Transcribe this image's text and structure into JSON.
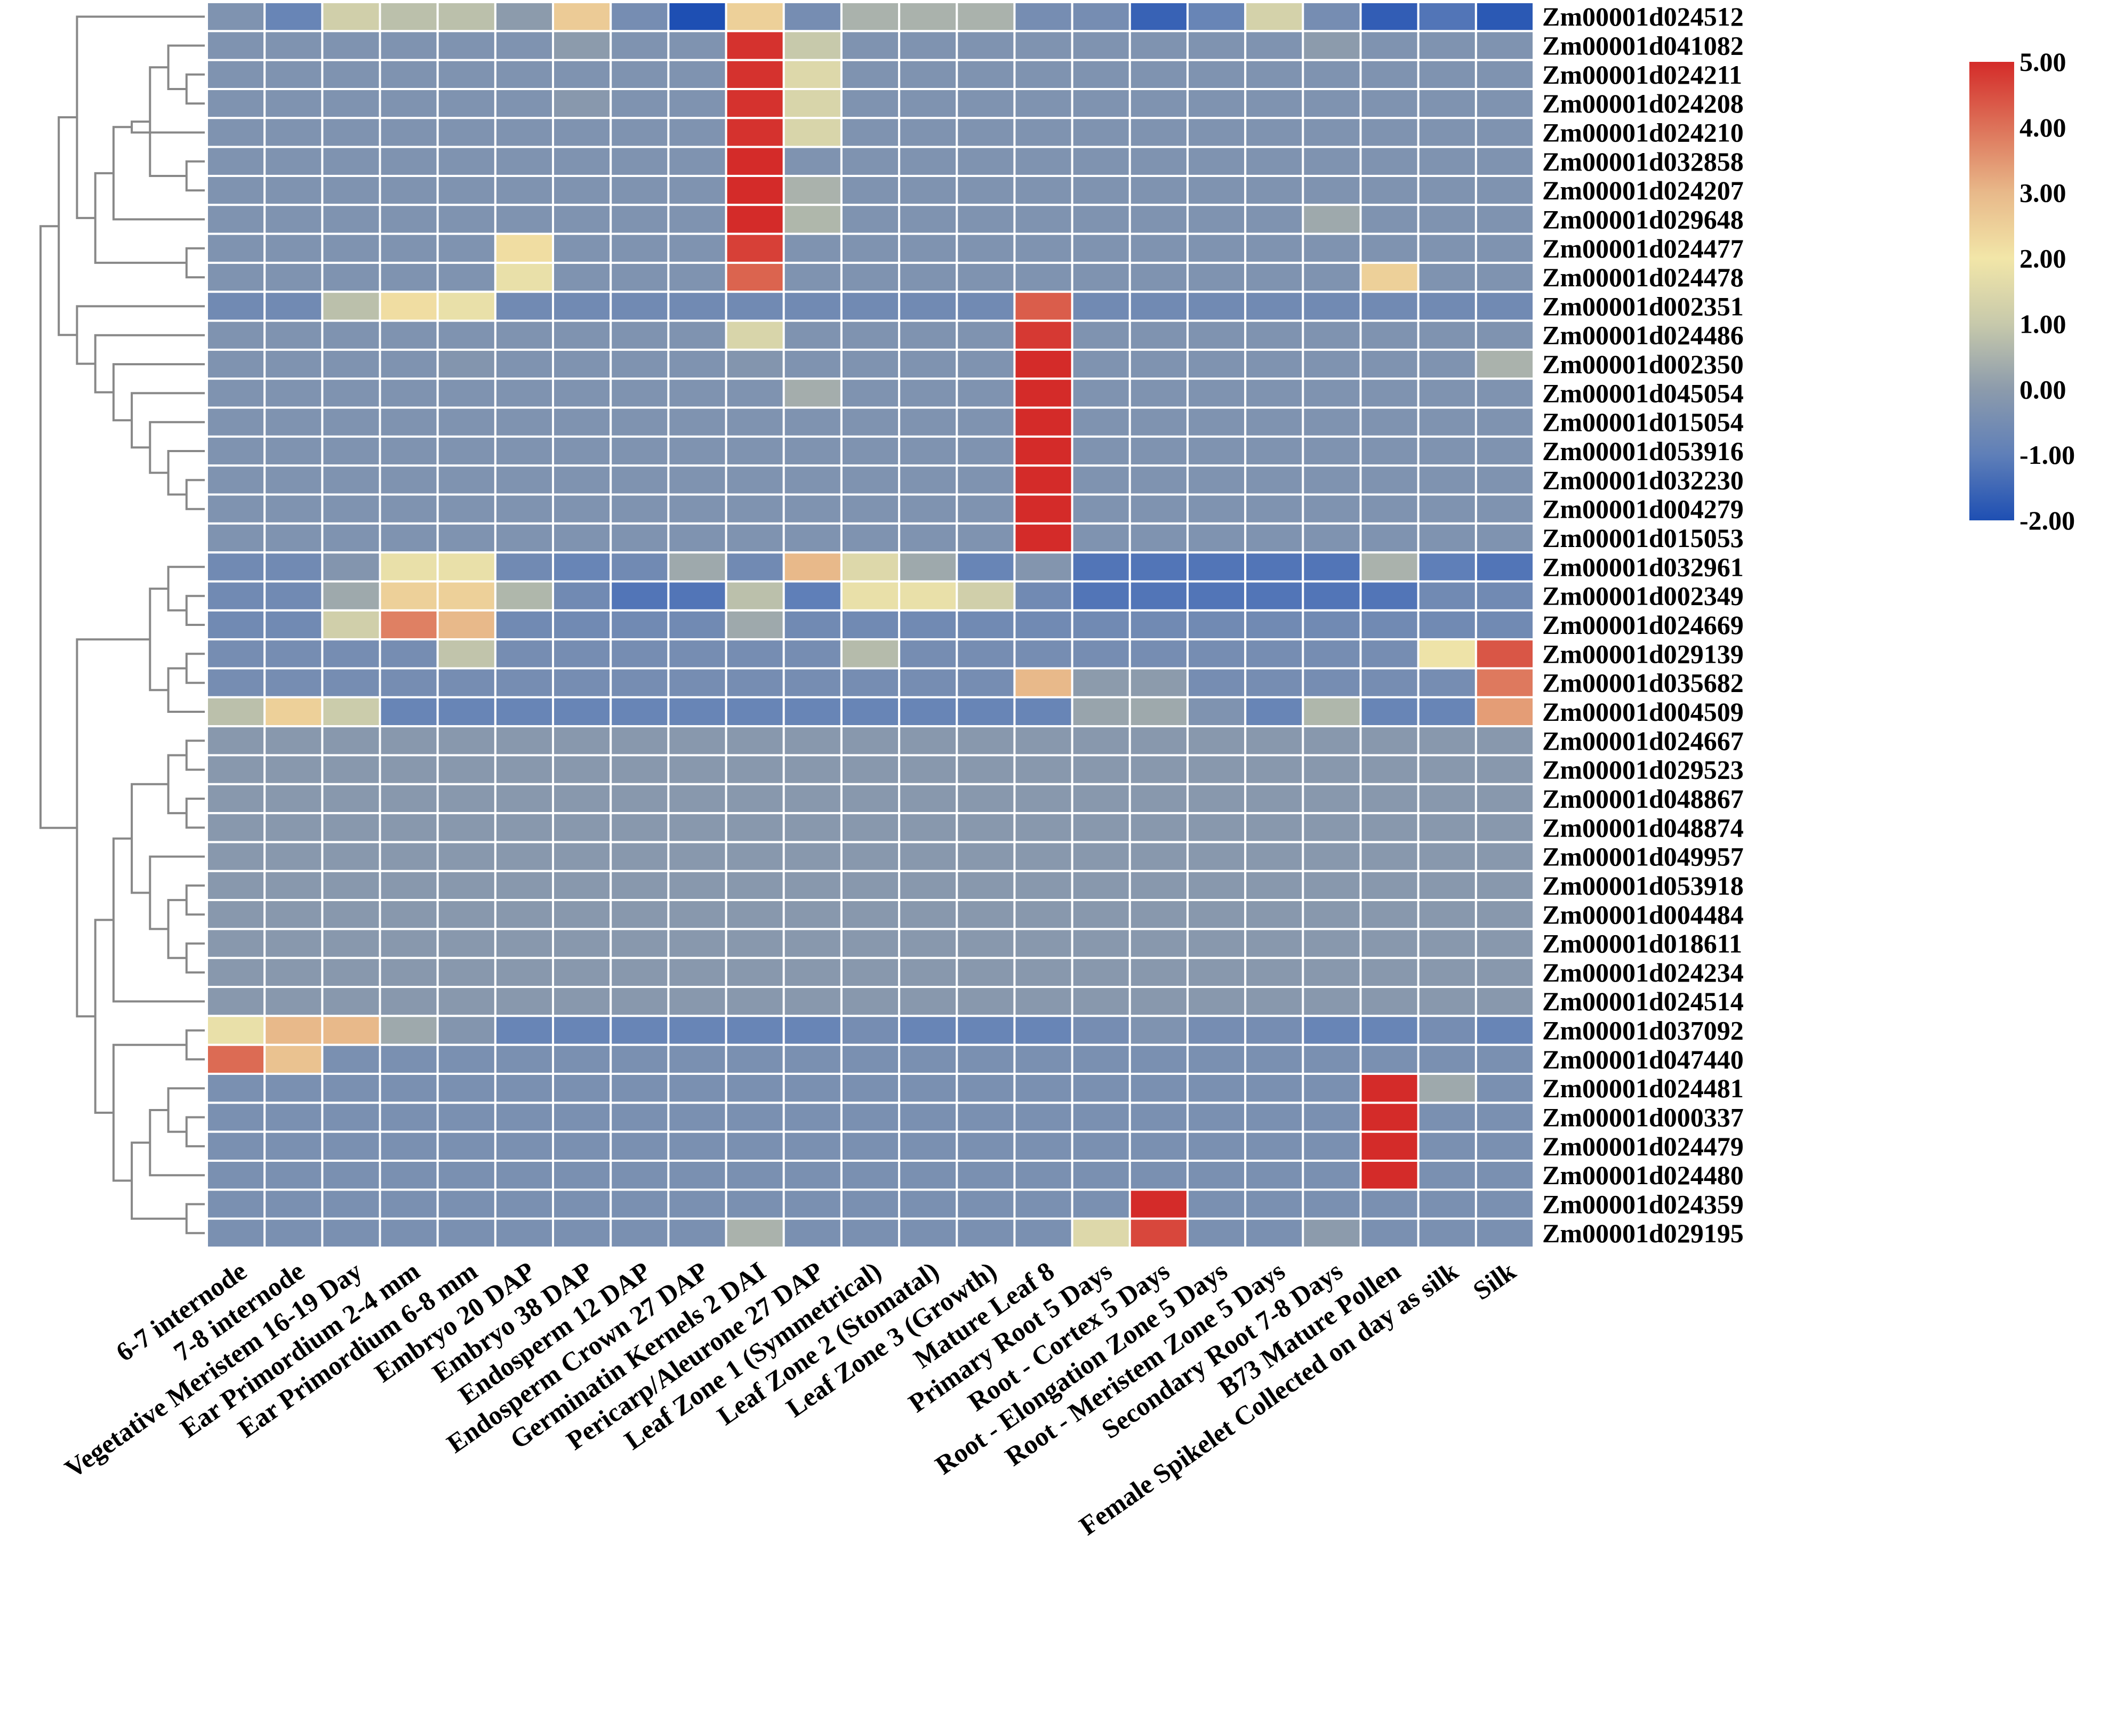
{
  "chart_data": {
    "type": "heatmap",
    "title": "",
    "xlabel": "",
    "ylabel": "",
    "color_scale": {
      "min": -2.0,
      "max": 5.0,
      "stops": [
        {
          "value": -2.0,
          "color": "#1e4fb3"
        },
        {
          "value": -1.0,
          "color": "#5f7fb8"
        },
        {
          "value": 0.0,
          "color": "#8c9bac"
        },
        {
          "value": 1.0,
          "color": "#c7c9ab"
        },
        {
          "value": 2.0,
          "color": "#f2e6a8"
        },
        {
          "value": 3.0,
          "color": "#e8b98a"
        },
        {
          "value": 4.0,
          "color": "#dd7259"
        },
        {
          "value": 5.0,
          "color": "#d42b29"
        }
      ],
      "tick_labels": [
        "5.00",
        "4.00",
        "3.00",
        "2.00",
        "1.00",
        "0.00",
        "-1.00",
        "-2.00"
      ],
      "tick_values": [
        5,
        4,
        3,
        2,
        1,
        0,
        -1,
        -2
      ]
    },
    "columns": [
      "6-7 internode",
      "7-8 internode",
      "Vegetative Meristem 16-19 Day",
      "Ear Primordium 2-4 mm",
      "Ear Primordium 6-8 mm",
      "Embryo 20 DAP",
      "Embryo 38 DAP",
      "Endosperm 12 DAP",
      "Endosperm Crown 27 DAP",
      "Germinatin Kernels 2 DAI",
      "Pericarp/Aleurone 27 DAP",
      "Leaf Zone 1 (Symmetrical)",
      "Leaf Zone 2 (Stomatal)",
      "Leaf Zone 3 (Growth)",
      "Mature Leaf 8",
      "Primary Root 5 Days",
      "Root - Cortex 5 Days",
      "Root - Elongation Zone 5 Days",
      "Root - Meristem Zone 5 Days",
      "Secondary Root 7-8 Days",
      "B73 Mature Pollen",
      "Female Spikelet Collected on day as silk",
      "Silk"
    ],
    "rows": [
      "Zm00001d024512",
      "Zm00001d041082",
      "Zm00001d024211",
      "Zm00001d024208",
      "Zm00001d024210",
      "Zm00001d032858",
      "Zm00001d024207",
      "Zm00001d029648",
      "Zm00001d024477",
      "Zm00001d024478",
      "Zm00001d002351",
      "Zm00001d024486",
      "Zm00001d002350",
      "Zm00001d045054",
      "Zm00001d015054",
      "Zm00001d053916",
      "Zm00001d032230",
      "Zm00001d004279",
      "Zm00001d015053",
      "Zm00001d032961",
      "Zm00001d002349",
      "Zm00001d024669",
      "Zm00001d029139",
      "Zm00001d035682",
      "Zm00001d004509",
      "Zm00001d024667",
      "Zm00001d029523",
      "Zm00001d048867",
      "Zm00001d048874",
      "Zm00001d049957",
      "Zm00001d053918",
      "Zm00001d004484",
      "Zm00001d018611",
      "Zm00001d024234",
      "Zm00001d024514",
      "Zm00001d037092",
      "Zm00001d047440",
      "Zm00001d024481",
      "Zm00001d000337",
      "Zm00001d024479",
      "Zm00001d024480",
      "Zm00001d024359",
      "Zm00001d029195"
    ],
    "values": [
      [
        -0.3,
        -0.8,
        1.2,
        0.8,
        0.8,
        0.0,
        2.6,
        -0.5,
        -2.0,
        2.5,
        -0.5,
        0.5,
        0.5,
        0.5,
        -0.5,
        -0.5,
        -1.6,
        -0.8,
        1.3,
        -0.5,
        -1.7,
        -1.2,
        -1.8
      ],
      [
        -0.3,
        -0.3,
        -0.3,
        -0.3,
        -0.3,
        -0.3,
        0.0,
        -0.3,
        -0.3,
        4.9,
        1.0,
        -0.3,
        -0.3,
        -0.3,
        -0.3,
        -0.3,
        -0.3,
        -0.3,
        -0.3,
        0.0,
        -0.3,
        -0.3,
        -0.3
      ],
      [
        -0.3,
        -0.3,
        -0.3,
        -0.3,
        -0.3,
        -0.3,
        -0.3,
        -0.3,
        -0.3,
        4.9,
        1.5,
        -0.3,
        -0.3,
        -0.3,
        -0.3,
        -0.3,
        -0.3,
        -0.3,
        -0.3,
        -0.3,
        -0.3,
        -0.3,
        -0.3
      ],
      [
        -0.3,
        -0.3,
        -0.3,
        -0.3,
        -0.3,
        -0.3,
        -0.1,
        -0.3,
        -0.3,
        4.9,
        1.4,
        -0.3,
        -0.3,
        -0.3,
        -0.3,
        -0.3,
        -0.3,
        -0.3,
        -0.3,
        -0.3,
        -0.3,
        -0.3,
        -0.3
      ],
      [
        -0.3,
        -0.3,
        -0.3,
        -0.3,
        -0.3,
        -0.3,
        -0.3,
        -0.3,
        -0.3,
        4.9,
        1.4,
        -0.3,
        -0.3,
        -0.3,
        -0.3,
        -0.3,
        -0.3,
        -0.3,
        -0.3,
        -0.3,
        -0.3,
        -0.3,
        -0.3
      ],
      [
        -0.3,
        -0.3,
        -0.3,
        -0.3,
        -0.3,
        -0.3,
        -0.3,
        -0.3,
        -0.3,
        5.0,
        -0.3,
        -0.3,
        -0.3,
        -0.3,
        -0.3,
        -0.3,
        -0.3,
        -0.3,
        -0.3,
        -0.3,
        -0.3,
        -0.3,
        -0.3
      ],
      [
        -0.3,
        -0.3,
        -0.3,
        -0.3,
        -0.3,
        -0.3,
        -0.3,
        -0.3,
        -0.3,
        5.0,
        0.5,
        -0.3,
        -0.3,
        -0.3,
        -0.3,
        -0.3,
        -0.3,
        -0.3,
        -0.3,
        -0.3,
        -0.3,
        -0.3,
        -0.3
      ],
      [
        -0.3,
        -0.3,
        -0.3,
        -0.3,
        -0.3,
        -0.3,
        -0.3,
        -0.3,
        -0.3,
        5.0,
        0.6,
        -0.3,
        -0.3,
        -0.3,
        -0.3,
        -0.3,
        -0.3,
        -0.3,
        -0.3,
        0.3,
        -0.3,
        -0.3,
        -0.3
      ],
      [
        -0.3,
        -0.3,
        -0.3,
        -0.3,
        -0.3,
        2.2,
        -0.3,
        -0.3,
        -0.3,
        4.7,
        -0.3,
        -0.3,
        -0.3,
        -0.3,
        -0.3,
        -0.3,
        -0.3,
        -0.3,
        -0.3,
        -0.3,
        -0.3,
        -0.3,
        -0.3
      ],
      [
        -0.3,
        -0.3,
        -0.3,
        -0.3,
        -0.3,
        1.8,
        -0.3,
        -0.3,
        -0.3,
        4.2,
        -0.3,
        -0.3,
        -0.3,
        -0.3,
        -0.3,
        -0.3,
        -0.3,
        -0.3,
        -0.3,
        -0.3,
        2.5,
        -0.3,
        -0.3
      ],
      [
        -0.6,
        -0.6,
        0.8,
        2.2,
        1.8,
        -0.6,
        -0.6,
        -0.6,
        -0.6,
        -0.6,
        -0.6,
        -0.6,
        -0.6,
        -0.6,
        4.3,
        -0.6,
        -0.6,
        -0.6,
        -0.6,
        -0.6,
        -0.6,
        -0.6,
        -0.6
      ],
      [
        -0.3,
        -0.3,
        -0.3,
        -0.3,
        -0.3,
        -0.3,
        -0.3,
        -0.3,
        -0.3,
        1.4,
        -0.3,
        -0.3,
        -0.3,
        -0.3,
        4.8,
        -0.3,
        -0.3,
        -0.3,
        -0.3,
        -0.3,
        -0.3,
        -0.3,
        -0.3
      ],
      [
        -0.3,
        -0.3,
        -0.3,
        -0.3,
        -0.2,
        -0.3,
        -0.3,
        -0.3,
        -0.3,
        -0.2,
        -0.3,
        -0.3,
        -0.3,
        -0.3,
        5.0,
        -0.3,
        -0.3,
        -0.3,
        -0.3,
        -0.3,
        -0.3,
        -0.3,
        0.5
      ],
      [
        -0.3,
        -0.3,
        -0.3,
        -0.3,
        -0.3,
        -0.3,
        -0.3,
        -0.3,
        -0.3,
        -0.3,
        0.4,
        -0.3,
        -0.3,
        -0.3,
        5.0,
        -0.3,
        -0.3,
        -0.3,
        -0.3,
        -0.3,
        -0.3,
        -0.3,
        -0.3
      ],
      [
        -0.3,
        -0.3,
        -0.3,
        -0.3,
        -0.3,
        -0.3,
        -0.3,
        -0.3,
        -0.3,
        -0.3,
        -0.3,
        -0.3,
        -0.3,
        -0.3,
        5.0,
        -0.3,
        -0.3,
        -0.3,
        -0.3,
        -0.3,
        -0.3,
        -0.3,
        -0.3
      ],
      [
        -0.3,
        -0.3,
        -0.3,
        -0.3,
        -0.3,
        -0.3,
        -0.3,
        -0.3,
        -0.3,
        -0.3,
        -0.3,
        -0.3,
        -0.3,
        -0.3,
        5.0,
        -0.3,
        -0.3,
        -0.3,
        -0.3,
        -0.3,
        -0.3,
        -0.3,
        -0.3
      ],
      [
        -0.3,
        -0.3,
        -0.3,
        -0.3,
        -0.3,
        -0.3,
        -0.3,
        -0.3,
        -0.3,
        -0.3,
        -0.3,
        -0.3,
        -0.3,
        -0.3,
        5.0,
        -0.3,
        -0.3,
        -0.3,
        -0.3,
        -0.3,
        -0.3,
        -0.3,
        -0.3
      ],
      [
        -0.3,
        -0.3,
        -0.3,
        -0.3,
        -0.3,
        -0.3,
        -0.3,
        -0.3,
        -0.3,
        -0.3,
        -0.3,
        -0.3,
        -0.3,
        -0.3,
        5.0,
        -0.3,
        -0.3,
        -0.3,
        -0.3,
        -0.3,
        -0.3,
        -0.3,
        -0.3
      ],
      [
        -0.3,
        -0.3,
        -0.3,
        -0.3,
        -0.3,
        -0.3,
        -0.3,
        -0.3,
        -0.3,
        -0.3,
        -0.3,
        -0.3,
        -0.3,
        -0.3,
        5.0,
        -0.3,
        -0.3,
        -0.3,
        -0.3,
        -0.3,
        -0.3,
        -0.3,
        -0.3
      ],
      [
        -0.6,
        -0.6,
        -0.2,
        1.8,
        1.8,
        -0.6,
        -0.8,
        -0.6,
        0.3,
        -0.6,
        3.0,
        1.5,
        0.3,
        -0.8,
        -0.2,
        -1.2,
        -1.2,
        -1.2,
        -1.2,
        -1.2,
        0.5,
        -1.0,
        -1.2
      ],
      [
        -0.6,
        -0.6,
        0.3,
        2.5,
        2.5,
        0.6,
        -0.6,
        -1.2,
        -1.2,
        0.8,
        -1.0,
        1.8,
        1.8,
        1.2,
        -0.6,
        -1.2,
        -1.2,
        -1.2,
        -1.2,
        -1.2,
        -1.2,
        -0.6,
        -0.6
      ],
      [
        -0.6,
        -0.6,
        1.2,
        3.8,
        3.0,
        -0.6,
        -0.6,
        -0.6,
        -0.6,
        0.3,
        -0.6,
        -0.6,
        -0.6,
        -0.6,
        -0.6,
        -0.6,
        -0.6,
        -0.6,
        -0.6,
        -0.6,
        -0.6,
        -0.6,
        -0.6
      ],
      [
        -0.5,
        -0.5,
        -0.5,
        -0.5,
        0.9,
        -0.5,
        -0.5,
        -0.5,
        -0.5,
        -0.5,
        -0.5,
        0.7,
        -0.5,
        -0.5,
        -0.5,
        -0.5,
        -0.5,
        -0.5,
        -0.5,
        -0.5,
        -0.5,
        1.9,
        4.4
      ],
      [
        -0.5,
        -0.5,
        -0.5,
        -0.5,
        -0.5,
        -0.5,
        -0.5,
        -0.5,
        -0.5,
        -0.5,
        -0.5,
        -0.5,
        -0.5,
        -0.5,
        3.0,
        0.0,
        0.0,
        -0.5,
        -0.5,
        -0.5,
        -0.5,
        -0.5,
        3.9
      ],
      [
        0.8,
        2.5,
        1.1,
        -0.8,
        -0.8,
        -0.8,
        -0.8,
        -0.8,
        -0.8,
        -0.8,
        -0.8,
        -0.8,
        -0.8,
        -0.8,
        -0.8,
        0.2,
        0.3,
        -0.3,
        -0.8,
        0.6,
        -0.8,
        -0.8,
        3.4
      ],
      [
        -0.1,
        -0.1,
        -0.1,
        -0.1,
        -0.1,
        -0.1,
        -0.1,
        -0.1,
        -0.1,
        -0.1,
        -0.1,
        -0.1,
        -0.1,
        -0.1,
        -0.1,
        -0.1,
        -0.1,
        -0.1,
        -0.1,
        -0.1,
        -0.1,
        -0.1,
        -0.1
      ],
      [
        -0.1,
        -0.1,
        -0.1,
        -0.1,
        -0.1,
        -0.1,
        -0.1,
        -0.1,
        -0.1,
        -0.1,
        -0.1,
        -0.1,
        -0.1,
        -0.1,
        -0.1,
        -0.1,
        -0.1,
        -0.1,
        -0.1,
        -0.1,
        -0.1,
        -0.1,
        -0.1
      ],
      [
        -0.1,
        -0.1,
        -0.1,
        -0.1,
        -0.1,
        -0.1,
        -0.1,
        -0.1,
        -0.1,
        -0.1,
        -0.1,
        -0.1,
        -0.1,
        -0.1,
        -0.1,
        -0.1,
        -0.1,
        -0.1,
        -0.1,
        -0.1,
        -0.1,
        -0.1,
        -0.1
      ],
      [
        -0.1,
        -0.1,
        -0.1,
        -0.1,
        -0.1,
        -0.1,
        -0.1,
        -0.1,
        -0.1,
        -0.1,
        -0.1,
        -0.1,
        -0.1,
        -0.1,
        -0.1,
        -0.1,
        -0.1,
        -0.1,
        -0.1,
        -0.1,
        -0.1,
        -0.1,
        -0.1
      ],
      [
        -0.1,
        -0.1,
        -0.1,
        -0.1,
        -0.1,
        -0.1,
        -0.1,
        -0.1,
        -0.1,
        -0.1,
        -0.1,
        -0.1,
        -0.1,
        -0.1,
        -0.1,
        -0.1,
        -0.1,
        -0.1,
        -0.1,
        -0.1,
        -0.1,
        -0.1,
        -0.1
      ],
      [
        -0.1,
        -0.1,
        -0.1,
        -0.1,
        -0.1,
        -0.1,
        -0.1,
        -0.1,
        -0.1,
        -0.1,
        -0.1,
        -0.1,
        -0.1,
        -0.1,
        -0.1,
        -0.1,
        -0.1,
        -0.1,
        -0.1,
        -0.1,
        -0.1,
        -0.1,
        -0.1
      ],
      [
        -0.1,
        -0.1,
        -0.1,
        -0.1,
        -0.1,
        -0.1,
        -0.1,
        -0.1,
        -0.1,
        -0.1,
        -0.1,
        -0.1,
        -0.1,
        -0.1,
        -0.1,
        -0.1,
        -0.1,
        -0.1,
        -0.1,
        -0.1,
        -0.1,
        -0.1,
        -0.1
      ],
      [
        -0.1,
        -0.1,
        -0.1,
        -0.1,
        -0.1,
        -0.1,
        -0.1,
        -0.1,
        -0.1,
        -0.1,
        -0.1,
        -0.1,
        -0.1,
        -0.1,
        -0.1,
        -0.1,
        -0.1,
        -0.1,
        -0.1,
        -0.1,
        -0.1,
        -0.1,
        -0.1
      ],
      [
        -0.1,
        -0.1,
        -0.1,
        -0.1,
        -0.1,
        -0.1,
        -0.1,
        -0.1,
        -0.1,
        -0.1,
        -0.1,
        -0.1,
        -0.1,
        -0.1,
        -0.1,
        -0.1,
        -0.1,
        -0.1,
        -0.1,
        -0.1,
        -0.1,
        -0.1,
        -0.1
      ],
      [
        -0.1,
        -0.1,
        -0.1,
        -0.1,
        -0.1,
        -0.1,
        -0.1,
        -0.1,
        -0.1,
        -0.1,
        -0.1,
        -0.1,
        -0.1,
        -0.1,
        -0.1,
        -0.1,
        -0.1,
        -0.1,
        -0.1,
        -0.1,
        -0.1,
        -0.1,
        -0.1
      ],
      [
        1.8,
        3.0,
        3.0,
        0.3,
        -0.2,
        -0.8,
        -0.8,
        -0.8,
        -0.8,
        -0.8,
        -0.8,
        -0.5,
        -0.8,
        -0.8,
        -0.8,
        -0.5,
        -0.3,
        -0.5,
        -0.5,
        -0.8,
        -0.8,
        -0.5,
        -0.8
      ],
      [
        4.1,
        2.8,
        -0.4,
        -0.4,
        -0.4,
        -0.4,
        -0.4,
        -0.4,
        -0.4,
        -0.4,
        -0.4,
        -0.4,
        -0.4,
        -0.4,
        -0.4,
        -0.4,
        -0.4,
        -0.4,
        -0.4,
        -0.4,
        -0.4,
        -0.4,
        -0.4
      ],
      [
        -0.4,
        -0.4,
        -0.4,
        -0.4,
        -0.4,
        -0.4,
        -0.4,
        -0.4,
        -0.4,
        -0.4,
        -0.4,
        -0.4,
        -0.4,
        -0.4,
        -0.4,
        -0.4,
        -0.4,
        -0.4,
        -0.4,
        -0.4,
        5.0,
        0.3,
        -0.4
      ],
      [
        -0.4,
        -0.4,
        -0.4,
        -0.4,
        -0.4,
        -0.4,
        -0.4,
        -0.4,
        -0.4,
        -0.4,
        -0.4,
        -0.4,
        -0.4,
        -0.4,
        -0.4,
        -0.4,
        -0.4,
        -0.4,
        -0.4,
        -0.4,
        5.0,
        -0.4,
        -0.4
      ],
      [
        -0.4,
        -0.4,
        -0.4,
        -0.4,
        -0.4,
        -0.4,
        -0.4,
        -0.4,
        -0.4,
        -0.4,
        -0.4,
        -0.4,
        -0.4,
        -0.4,
        -0.4,
        -0.4,
        -0.4,
        -0.4,
        -0.4,
        -0.4,
        5.0,
        -0.4,
        -0.4
      ],
      [
        -0.4,
        -0.4,
        -0.4,
        -0.4,
        -0.4,
        -0.4,
        -0.4,
        -0.4,
        -0.4,
        -0.4,
        -0.4,
        -0.4,
        -0.4,
        -0.4,
        -0.4,
        -0.4,
        -0.4,
        -0.4,
        -0.4,
        -0.4,
        5.0,
        -0.4,
        -0.4
      ],
      [
        -0.4,
        -0.4,
        -0.4,
        -0.4,
        -0.4,
        -0.4,
        -0.4,
        -0.4,
        -0.4,
        -0.4,
        -0.4,
        -0.4,
        -0.4,
        -0.4,
        -0.4,
        -0.4,
        5.0,
        -0.4,
        -0.4,
        -0.4,
        -0.4,
        -0.4,
        -0.4
      ],
      [
        -0.4,
        -0.4,
        -0.4,
        -0.4,
        -0.4,
        -0.4,
        -0.4,
        -0.4,
        -0.4,
        0.5,
        -0.4,
        -0.4,
        -0.4,
        -0.4,
        -0.4,
        1.5,
        4.6,
        -0.4,
        -0.4,
        0.0,
        -0.4,
        -0.4,
        -0.4
      ]
    ],
    "row_dendrogram": {
      "type": "hierarchical-clustering",
      "merges": [
        [
          2,
          3
        ],
        [
          1,
          "m0"
        ],
        [
          5,
          6
        ],
        [
          "m1",
          "m2"
        ],
        [
          4,
          "m3"
        ],
        [
          7,
          "m4"
        ],
        [
          8,
          9
        ],
        [
          "m5",
          "m6"
        ],
        [
          0,
          "m7"
        ],
        [
          16,
          17
        ],
        [
          15,
          "m9"
        ],
        [
          14,
          "m10"
        ],
        [
          13,
          "m11"
        ],
        [
          12,
          "m12"
        ],
        [
          11,
          "m13"
        ],
        [
          10,
          "m14"
        ],
        [
          "m8",
          "m15"
        ],
        [
          20,
          21
        ],
        [
          19,
          "m17"
        ],
        [
          22,
          23
        ],
        [
          "m19",
          24
        ],
        [
          "m18",
          "m20"
        ],
        [
          25,
          26
        ],
        [
          27,
          28
        ],
        [
          "m22",
          "m23"
        ],
        [
          30,
          31
        ],
        [
          32,
          33
        ],
        [
          "m25",
          "m26"
        ],
        [
          29,
          "m27"
        ],
        [
          "m24",
          "m28"
        ],
        [
          "m29",
          34
        ],
        [
          35,
          36
        ],
        [
          38,
          39
        ],
        [
          37,
          "m32"
        ],
        [
          "m33",
          40
        ],
        [
          41,
          42
        ],
        [
          "m34",
          "m35"
        ],
        [
          "m31",
          "m36"
        ],
        [
          "m30",
          "m37"
        ],
        [
          "m21",
          "m38"
        ],
        [
          "m16",
          "m39"
        ]
      ]
    }
  }
}
